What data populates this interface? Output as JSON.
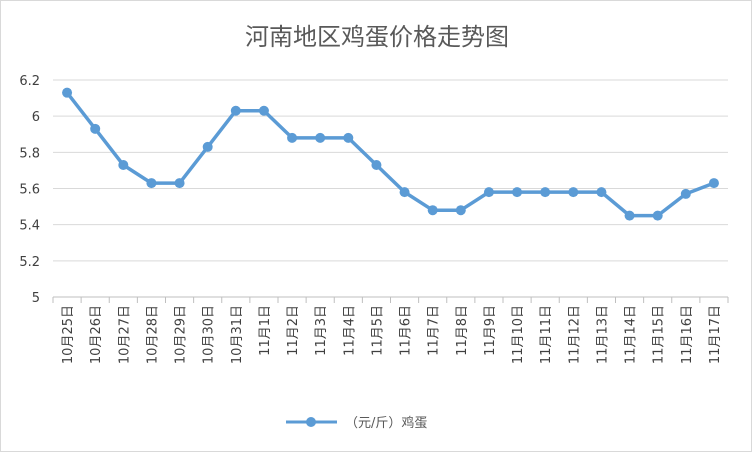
{
  "chart_data": {
    "type": "line",
    "title": "河南地区鸡蛋价格走势图",
    "xlabel": "",
    "ylabel": "",
    "categories": [
      "10月25日",
      "10月26日",
      "10月27日",
      "10月28日",
      "10月29日",
      "10月30日",
      "10月31日",
      "11月1日",
      "11月2日",
      "11月3日",
      "11月4日",
      "11月5日",
      "11月6日",
      "11月7日",
      "11月8日",
      "11月9日",
      "11月10日",
      "11月11日",
      "11月12日",
      "11月13日",
      "11月14日",
      "11月15日",
      "11月16日",
      "11月17日"
    ],
    "series": [
      {
        "name": "（元/斤）鸡蛋",
        "values": [
          6.13,
          5.93,
          5.73,
          5.63,
          5.63,
          5.83,
          6.03,
          6.03,
          5.88,
          5.88,
          5.88,
          5.73,
          5.58,
          5.48,
          5.48,
          5.58,
          5.58,
          5.58,
          5.58,
          5.58,
          5.45,
          5.45,
          5.57,
          5.63
        ],
        "color": "#5b9bd5"
      }
    ],
    "ylim": [
      5,
      6.2
    ],
    "yticks": [
      5,
      5.2,
      5.4,
      5.6,
      5.8,
      6,
      6.2
    ],
    "grid": true,
    "legend_position": "bottom"
  }
}
